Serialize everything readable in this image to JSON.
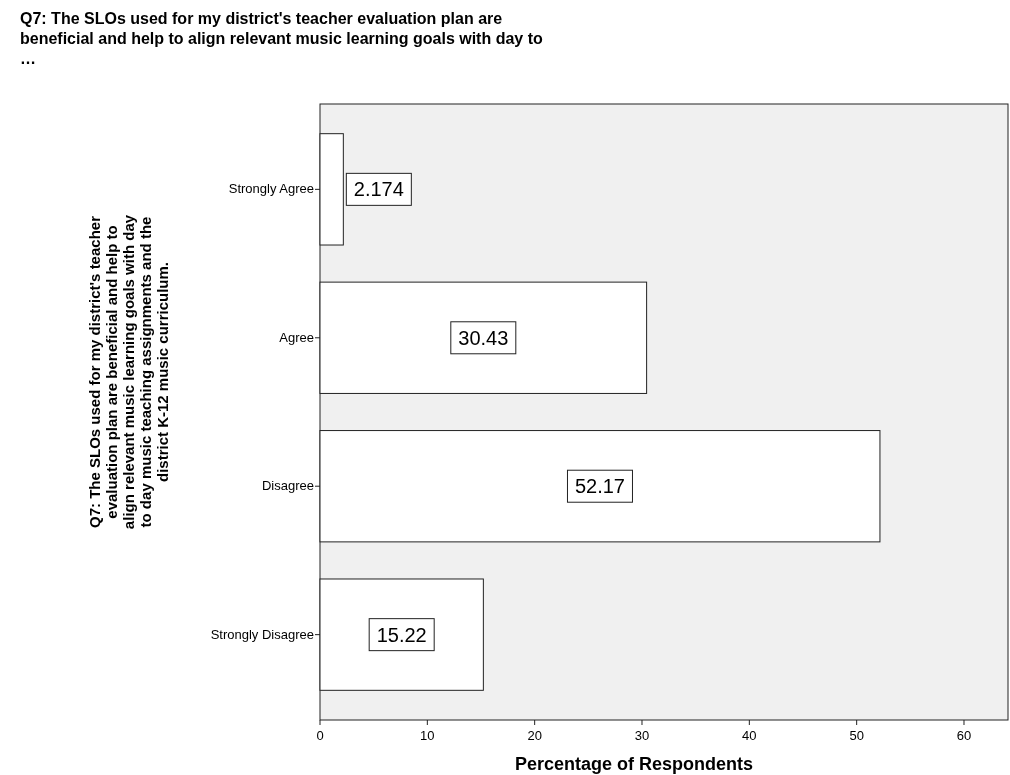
{
  "chart_data": {
    "type": "bar",
    "orientation": "horizontal",
    "title": "Q7: The SLOs used for my district's teacher evaluation plan are beneficial and help to align relevant music learning goals with day to …",
    "ylabel": "Q7: The SLOs used for my district's teacher evaluation plan are beneficial and help to align relevant music learning goals with day to day music teaching assignments and the district K-12 music curriculum.",
    "xlabel": "Percentage of Respondents",
    "categories": [
      "Strongly Agree",
      "Agree",
      "Disagree",
      "Strongly Disagree"
    ],
    "values": [
      2.174,
      30.43,
      52.17,
      15.22
    ],
    "color": "#ffffff",
    "data_labels": true,
    "xlim": [
      0,
      64.1
    ],
    "xticks": [
      0,
      10,
      20,
      30,
      40,
      50,
      60
    ],
    "grid": false
  }
}
